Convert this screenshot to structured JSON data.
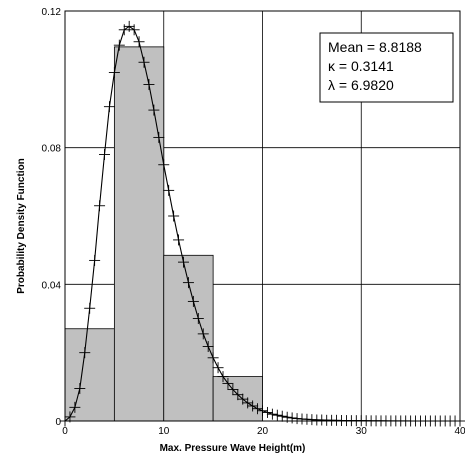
{
  "chart_data": {
    "type": "bar",
    "title": "",
    "xlabel": "Max. Pressure Wave Height(m)",
    "ylabel": "Probability Density Function",
    "xlim": [
      0,
      40
    ],
    "ylim": [
      0,
      0.12
    ],
    "xticks": [
      0,
      10,
      20,
      30,
      40
    ],
    "xtick_labels": [
      "0",
      "10",
      "20",
      "30",
      "40"
    ],
    "yticks": [
      0,
      0.04,
      0.08,
      0.12
    ],
    "ytick_labels": [
      "0",
      "0.04",
      "0.08",
      "0.12"
    ],
    "grid": true,
    "histogram": {
      "bin_edges": [
        0,
        5,
        10,
        15,
        20
      ],
      "values": [
        0.027,
        0.1095,
        0.0485,
        0.013
      ],
      "color": "#c0c0c0"
    },
    "fitted_curve": {
      "x": [
        0,
        0.5,
        1,
        1.5,
        2,
        2.5,
        3,
        3.5,
        4,
        4.5,
        5,
        5.5,
        6,
        6.5,
        7,
        7.5,
        8,
        8.5,
        9,
        9.5,
        10,
        10.5,
        11,
        11.5,
        12,
        12.5,
        13,
        13.5,
        14,
        14.5,
        15,
        15.5,
        16,
        16.5,
        17,
        17.5,
        18,
        18.5,
        19,
        19.5,
        20,
        21,
        22,
        23,
        24,
        25,
        26,
        27,
        28,
        29,
        30,
        31,
        32,
        33,
        34,
        35
      ],
      "y": [
        0,
        0.0012,
        0.004,
        0.0095,
        0.02,
        0.033,
        0.047,
        0.063,
        0.078,
        0.092,
        0.102,
        0.11,
        0.1145,
        0.1155,
        0.1145,
        0.111,
        0.105,
        0.0985,
        0.091,
        0.083,
        0.075,
        0.0675,
        0.06,
        0.053,
        0.0465,
        0.0405,
        0.035,
        0.03,
        0.0255,
        0.0218,
        0.0185,
        0.0156,
        0.013,
        0.011,
        0.0092,
        0.0077,
        0.0064,
        0.0053,
        0.0044,
        0.0036,
        0.003,
        0.002,
        0.0014,
        0.0009,
        0.0006,
        0.0004,
        0.0003,
        0.0002,
        0.00015,
        0.0001,
        0.0001,
        5e-05,
        5e-05,
        3e-05,
        2e-05,
        1e-05
      ],
      "color": "#000000"
    },
    "sample_markers": {
      "x": [
        0,
        0.5,
        1,
        1.5,
        2,
        2.5,
        3,
        3.5,
        4,
        4.5,
        5,
        5.5,
        6,
        6.5,
        7,
        7.5,
        8,
        8.5,
        9,
        9.5,
        10,
        10.5,
        11,
        11.5,
        12,
        12.5,
        13,
        13.5,
        14,
        14.5,
        15,
        15.5,
        16,
        16.5,
        17,
        17.5,
        18,
        18.5,
        19,
        19.5,
        20,
        20.5,
        21,
        21.5,
        22,
        22.5,
        23,
        23.5,
        24,
        24.5,
        25,
        25.5,
        26,
        26.5,
        27,
        27.5,
        28,
        28.5,
        29,
        29.5,
        30,
        30.5,
        31,
        31.5,
        32,
        32.5,
        33,
        33.5,
        34,
        34.5,
        35,
        35.5,
        36,
        36.5,
        37,
        37.5,
        38,
        38.5,
        39,
        39.5,
        40
      ],
      "y": [
        0,
        0.0012,
        0.004,
        0.0095,
        0.02,
        0.033,
        0.047,
        0.063,
        0.078,
        0.092,
        0.102,
        0.11,
        0.1145,
        0.1155,
        0.1145,
        0.111,
        0.105,
        0.0985,
        0.091,
        0.083,
        0.075,
        0.0675,
        0.06,
        0.053,
        0.0465,
        0.0405,
        0.035,
        0.03,
        0.0255,
        0.0218,
        0.0185,
        0.0156,
        0.013,
        0.011,
        0.0092,
        0.0077,
        0.0064,
        0.0053,
        0.0044,
        0.0036,
        0.003,
        0.0025,
        0.002,
        0.0017,
        0.0014,
        0.0011,
        0.0009,
        0.0007,
        0.0006,
        0.0005,
        0.0004,
        0.0003,
        0.0003,
        0.0002,
        0.0002,
        0.0002,
        0.00015,
        0.00012,
        0.0001,
        0.0001,
        0.0001,
        8e-05,
        5e-05,
        5e-05,
        5e-05,
        4e-05,
        3e-05,
        3e-05,
        2e-05,
        2e-05,
        1e-05,
        1e-05,
        1e-05,
        1e-05,
        1e-05,
        1e-05,
        1e-05,
        1e-05,
        1e-05,
        1e-05,
        0
      ],
      "marker": "plus",
      "color": "#000000"
    },
    "stats_box": {
      "lines": [
        "Mean = 8.8188",
        "κ = 0.3141",
        "λ = 6.9820"
      ]
    }
  }
}
